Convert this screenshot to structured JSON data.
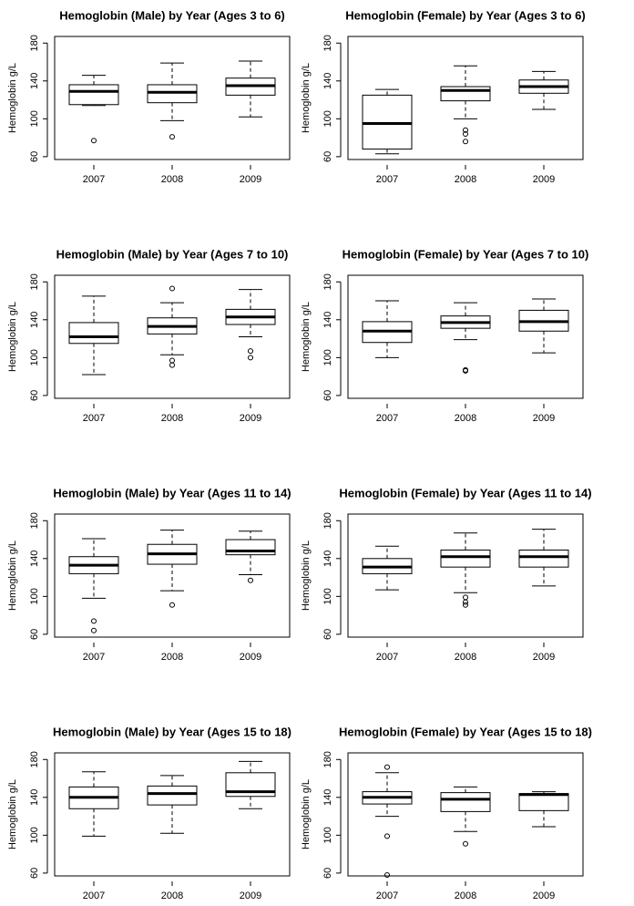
{
  "chart_data": [
    {
      "type": "box",
      "title": "Hemoglobin (Male) by Year (Ages 3 to 6)",
      "ylabel": "Hemoglobin g/L",
      "categories": [
        "2007",
        "2008",
        "2009"
      ],
      "ylim": [
        57,
        187
      ],
      "yticks": [
        60,
        100,
        140,
        180
      ],
      "boxes": [
        {
          "low": 114,
          "q1": 115,
          "median": 129,
          "q3": 136,
          "high": 146,
          "outliers": [
            77
          ]
        },
        {
          "low": 98,
          "q1": 117,
          "median": 128,
          "q3": 136,
          "high": 159,
          "outliers": [
            81
          ]
        },
        {
          "low": 102,
          "q1": 125,
          "median": 135,
          "q3": 143,
          "high": 161
        }
      ]
    },
    {
      "type": "box",
      "title": "Hemoglobin (Female) by Year (Ages 3 to 6)",
      "ylabel": "Hemoglobin g/L",
      "categories": [
        "2007",
        "2008",
        "2009"
      ],
      "ylim": [
        57,
        187
      ],
      "yticks": [
        60,
        100,
        140,
        180
      ],
      "boxes": [
        {
          "low": 63,
          "q1": 68,
          "median": 95,
          "q3": 125,
          "high": 131
        },
        {
          "low": 100,
          "q1": 119,
          "median": 130,
          "q3": 134,
          "high": 156,
          "outliers": [
            88,
            84,
            76
          ]
        },
        {
          "low": 110,
          "q1": 127,
          "median": 134,
          "q3": 141,
          "high": 150
        }
      ]
    },
    {
      "type": "box",
      "title": "Hemoglobin (Male) by Year (Ages 7 to 10)",
      "ylabel": "Hemoglobin g/L",
      "categories": [
        "2007",
        "2008",
        "2009"
      ],
      "ylim": [
        57,
        187
      ],
      "yticks": [
        60,
        100,
        140,
        180
      ],
      "boxes": [
        {
          "low": 82,
          "q1": 115,
          "median": 122,
          "q3": 137,
          "high": 165
        },
        {
          "low": 103,
          "q1": 125,
          "median": 133,
          "q3": 142,
          "high": 158,
          "outliers": [
            173,
            97,
            92
          ]
        },
        {
          "low": 122,
          "q1": 135,
          "median": 143,
          "q3": 151,
          "high": 172,
          "outliers": [
            107,
            100
          ]
        }
      ]
    },
    {
      "type": "box",
      "title": "Hemoglobin (Female) by Year (Ages 7 to 10)",
      "ylabel": "Hemoglobin g/L",
      "categories": [
        "2007",
        "2008",
        "2009"
      ],
      "ylim": [
        57,
        187
      ],
      "yticks": [
        60,
        100,
        140,
        180
      ],
      "boxes": [
        {
          "low": 100,
          "q1": 116,
          "median": 128,
          "q3": 138,
          "high": 160
        },
        {
          "low": 119,
          "q1": 131,
          "median": 137,
          "q3": 144,
          "high": 158,
          "outliers": [
            87,
            86
          ]
        },
        {
          "low": 105,
          "q1": 128,
          "median": 138,
          "q3": 150,
          "high": 162
        }
      ]
    },
    {
      "type": "box",
      "title": "Hemoglobin (Male) by Year (Ages 11 to 14)",
      "ylabel": "Hemoglobin g/L",
      "categories": [
        "2007",
        "2008",
        "2009"
      ],
      "ylim": [
        57,
        187
      ],
      "yticks": [
        60,
        100,
        140,
        180
      ],
      "boxes": [
        {
          "low": 98,
          "q1": 124,
          "median": 133,
          "q3": 142,
          "high": 161,
          "outliers": [
            74,
            64
          ]
        },
        {
          "low": 106,
          "q1": 134,
          "median": 145,
          "q3": 155,
          "high": 170,
          "outliers": [
            91
          ]
        },
        {
          "low": 123,
          "q1": 144,
          "median": 148,
          "q3": 160,
          "high": 169,
          "outliers": [
            117
          ]
        }
      ]
    },
    {
      "type": "box",
      "title": "Hemoglobin (Female) by Year (Ages 11 to 14)",
      "ylabel": "Hemoglobin g/L",
      "categories": [
        "2007",
        "2008",
        "2009"
      ],
      "ylim": [
        57,
        187
      ],
      "yticks": [
        60,
        100,
        140,
        180
      ],
      "boxes": [
        {
          "low": 107,
          "q1": 124,
          "median": 131,
          "q3": 140,
          "high": 153
        },
        {
          "low": 104,
          "q1": 131,
          "median": 142,
          "q3": 149,
          "high": 167,
          "outliers": [
            99,
            94,
            91
          ]
        },
        {
          "low": 111,
          "q1": 131,
          "median": 142,
          "q3": 149,
          "high": 171
        }
      ]
    },
    {
      "type": "box",
      "title": "Hemoglobin (Male) by Year (Ages 15 to 18)",
      "ylabel": "Hemoglobin g/L",
      "categories": [
        "2007",
        "2008",
        "2009"
      ],
      "ylim": [
        57,
        187
      ],
      "yticks": [
        60,
        100,
        140,
        180
      ],
      "boxes": [
        {
          "low": 99,
          "q1": 128,
          "median": 140,
          "q3": 151,
          "high": 167
        },
        {
          "low": 102,
          "q1": 132,
          "median": 144,
          "q3": 152,
          "high": 163
        },
        {
          "low": 128,
          "q1": 141,
          "median": 146,
          "q3": 166,
          "high": 178
        }
      ]
    },
    {
      "type": "box",
      "title": "Hemoglobin (Female) by Year (Ages 15 to 18)",
      "ylabel": "Hemoglobin g/L",
      "categories": [
        "2007",
        "2008",
        "2009"
      ],
      "ylim": [
        57,
        187
      ],
      "yticks": [
        60,
        100,
        140,
        180
      ],
      "boxes": [
        {
          "low": 120,
          "q1": 133,
          "median": 140,
          "q3": 146,
          "high": 166,
          "outliers": [
            172,
            99,
            58
          ]
        },
        {
          "low": 104,
          "q1": 125,
          "median": 138,
          "q3": 145,
          "high": 151,
          "outliers": [
            91
          ]
        },
        {
          "low": 109,
          "q1": 126,
          "median": 143,
          "q3": 144,
          "high": 146
        }
      ]
    }
  ]
}
